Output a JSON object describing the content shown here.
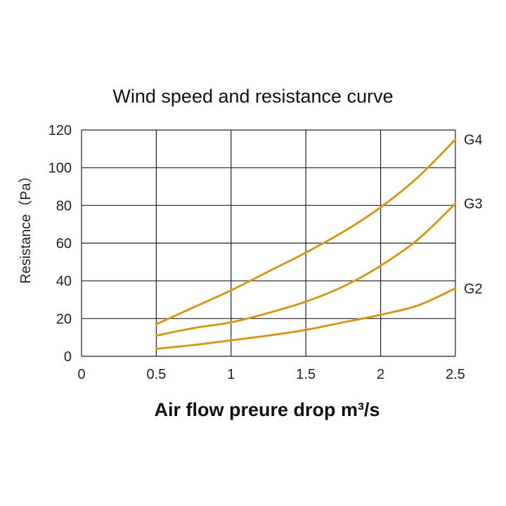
{
  "chart_data": {
    "type": "line",
    "title": "Wind speed and resistance curve",
    "xlabel": "Air flow preure drop m³/s",
    "ylabel": "Resistance（Pa）",
    "xlim": [
      0,
      2.5
    ],
    "ylim": [
      0,
      120
    ],
    "x_ticks": [
      "0",
      "0.5",
      "1",
      "1.5",
      "2",
      "2.5"
    ],
    "y_ticks": [
      "0",
      "20",
      "40",
      "60",
      "80",
      "100",
      "120"
    ],
    "grid": true,
    "line_color": "#e0a020",
    "series": [
      {
        "name": "G4",
        "x": [
          0.5,
          0.75,
          1.0,
          1.25,
          1.5,
          1.75,
          2.0,
          2.25,
          2.5
        ],
        "y": [
          17,
          26,
          35,
          45,
          55,
          66,
          79,
          95,
          115
        ]
      },
      {
        "name": "G3",
        "x": [
          0.5,
          0.75,
          1.0,
          1.25,
          1.5,
          1.75,
          2.0,
          2.25,
          2.5
        ],
        "y": [
          11,
          15,
          18,
          23,
          29,
          37,
          48,
          62,
          81
        ]
      },
      {
        "name": "G2",
        "x": [
          0.5,
          0.75,
          1.0,
          1.25,
          1.5,
          1.75,
          2.0,
          2.25,
          2.5
        ],
        "y": [
          4,
          6,
          8.5,
          11,
          14,
          18,
          22,
          27,
          36
        ]
      }
    ]
  }
}
